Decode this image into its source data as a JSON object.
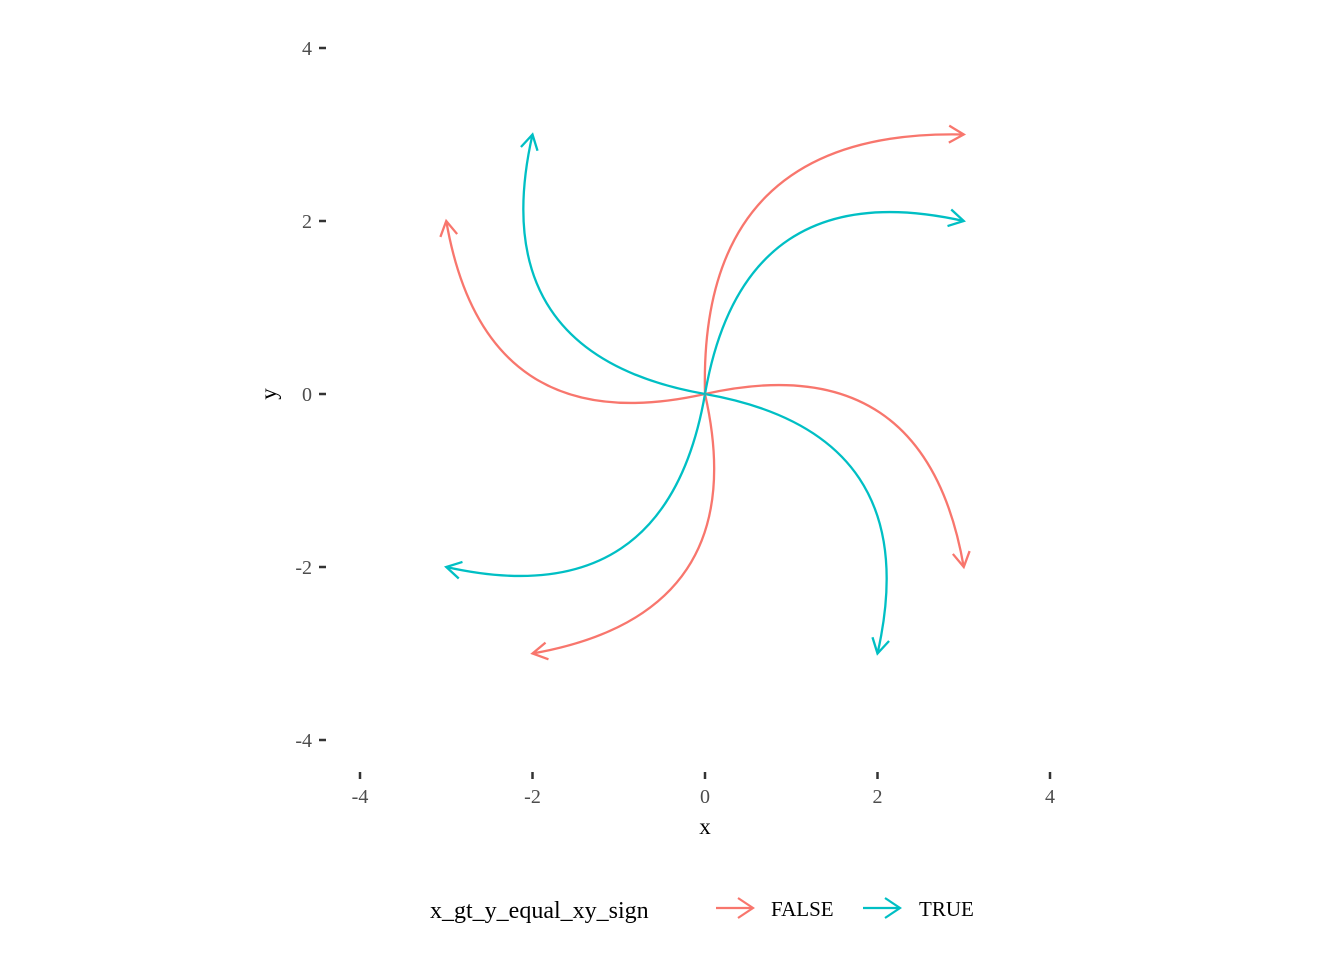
{
  "chart_data": {
    "type": "line",
    "xlabel": "x",
    "ylabel": "y",
    "xlim": [
      -4,
      4
    ],
    "ylim": [
      -4,
      4
    ],
    "x_ticks": [
      "-4",
      "-2",
      "0",
      "2",
      "4"
    ],
    "y_ticks": [
      "4",
      "2",
      "0",
      "-2",
      "-4"
    ],
    "grid": false,
    "legend_position": "bottom",
    "legend": {
      "title": "x_gt_y_equal_xy_sign",
      "entries": [
        {
          "label": "FALSE",
          "color": "#F8766D"
        },
        {
          "label": "TRUE",
          "color": "#00BFC4"
        }
      ]
    },
    "curvature": 0.5,
    "series": [
      {
        "group": "FALSE",
        "x": [
          0,
          0
        ],
        "y": [
          0,
          0
        ]
      },
      {
        "group": "FALSE",
        "x": [
          0,
          3
        ],
        "y": [
          0,
          3
        ]
      },
      {
        "group": "TRUE",
        "x": [
          0,
          3
        ],
        "y": [
          0,
          2
        ]
      },
      {
        "group": "FALSE",
        "x": [
          0,
          3
        ],
        "y": [
          0,
          -2
        ]
      },
      {
        "group": "TRUE",
        "x": [
          0,
          2
        ],
        "y": [
          0,
          -3
        ]
      },
      {
        "group": "FALSE",
        "x": [
          0,
          -2
        ],
        "y": [
          0,
          -3
        ]
      },
      {
        "group": "TRUE",
        "x": [
          0,
          -3
        ],
        "y": [
          0,
          -2
        ]
      },
      {
        "group": "FALSE",
        "x": [
          0,
          -3
        ],
        "y": [
          0,
          2
        ]
      },
      {
        "group": "TRUE",
        "x": [
          0,
          -2
        ],
        "y": [
          0,
          3
        ]
      }
    ]
  }
}
